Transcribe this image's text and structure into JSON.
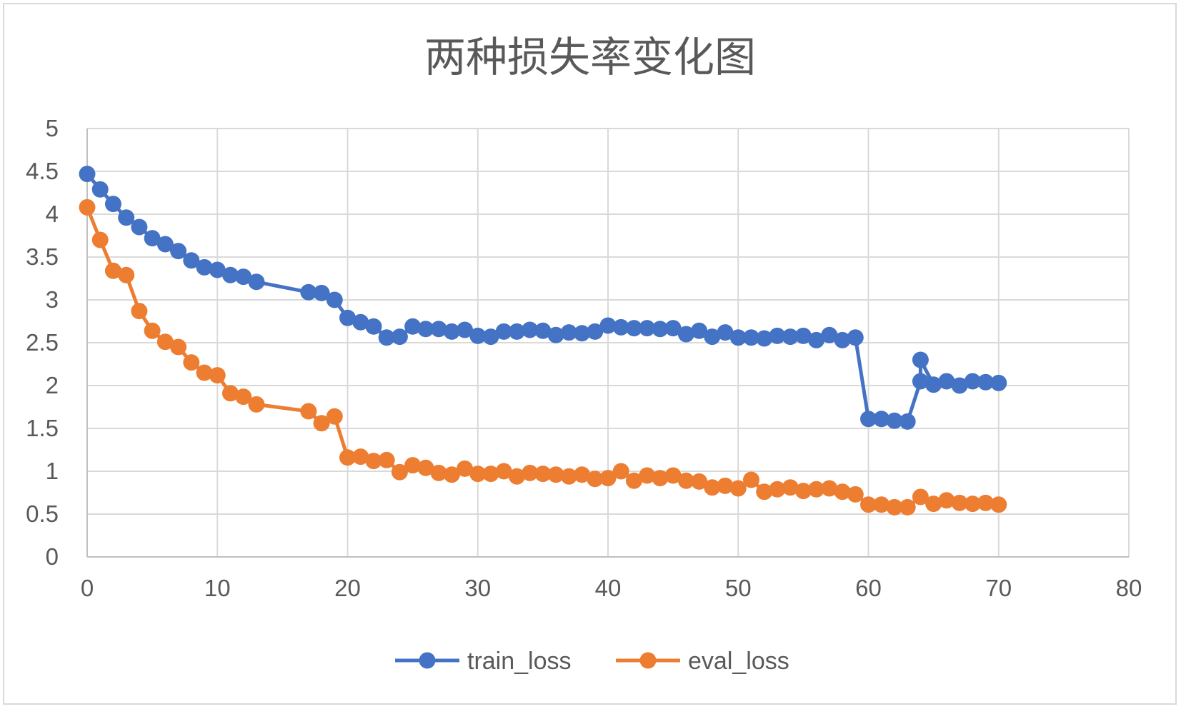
{
  "chart_data": {
    "type": "line",
    "title": "两种损失率变化图",
    "xlabel": "",
    "ylabel": "",
    "xlim": [
      0,
      80
    ],
    "ylim": [
      0,
      5
    ],
    "x_ticks": [
      "0",
      "10",
      "20",
      "30",
      "40",
      "50",
      "60",
      "70",
      "80"
    ],
    "y_ticks": [
      "0",
      "0.5",
      "1",
      "1.5",
      "2",
      "2.5",
      "3",
      "3.5",
      "4",
      "4.5",
      "5"
    ],
    "grid": true,
    "legend_position": "bottom",
    "series": [
      {
        "name": "train_loss",
        "color": "#4472c4",
        "points": [
          [
            0,
            4.47
          ],
          [
            1,
            4.29
          ],
          [
            2,
            4.12
          ],
          [
            3,
            3.96
          ],
          [
            4,
            3.85
          ],
          [
            5,
            3.72
          ],
          [
            6,
            3.65
          ],
          [
            7,
            3.57
          ],
          [
            8,
            3.46
          ],
          [
            9,
            3.38
          ],
          [
            10,
            3.35
          ],
          [
            11,
            3.29
          ],
          [
            12,
            3.27
          ],
          [
            13,
            3.21
          ],
          [
            17,
            3.09
          ],
          [
            18,
            3.08
          ],
          [
            19,
            3.0
          ],
          [
            20,
            2.79
          ],
          [
            21,
            2.74
          ],
          [
            22,
            2.69
          ],
          [
            23,
            2.56
          ],
          [
            24,
            2.57
          ],
          [
            25,
            2.69
          ],
          [
            26,
            2.66
          ],
          [
            27,
            2.66
          ],
          [
            28,
            2.63
          ],
          [
            29,
            2.65
          ],
          [
            30,
            2.58
          ],
          [
            31,
            2.57
          ],
          [
            32,
            2.63
          ],
          [
            33,
            2.63
          ],
          [
            34,
            2.65
          ],
          [
            35,
            2.64
          ],
          [
            36,
            2.59
          ],
          [
            37,
            2.62
          ],
          [
            38,
            2.61
          ],
          [
            39,
            2.63
          ],
          [
            40,
            2.7
          ],
          [
            41,
            2.68
          ],
          [
            42,
            2.67
          ],
          [
            43,
            2.67
          ],
          [
            44,
            2.66
          ],
          [
            45,
            2.67
          ],
          [
            46,
            2.6
          ],
          [
            47,
            2.64
          ],
          [
            48,
            2.57
          ],
          [
            49,
            2.62
          ],
          [
            50,
            2.56
          ],
          [
            51,
            2.56
          ],
          [
            52,
            2.55
          ],
          [
            53,
            2.58
          ],
          [
            54,
            2.57
          ],
          [
            55,
            2.58
          ],
          [
            56,
            2.53
          ],
          [
            57,
            2.59
          ],
          [
            58,
            2.53
          ],
          [
            59,
            2.56
          ],
          [
            60,
            1.61
          ],
          [
            61,
            1.61
          ],
          [
            62,
            1.59
          ],
          [
            63,
            1.58
          ],
          [
            64,
            2.05
          ],
          [
            64,
            2.3
          ],
          [
            65,
            2.01
          ],
          [
            66,
            2.05
          ],
          [
            67,
            2.0
          ],
          [
            68,
            2.05
          ],
          [
            69,
            2.04
          ],
          [
            70,
            2.03
          ]
        ]
      },
      {
        "name": "eval_loss",
        "color": "#ed7d31",
        "points": [
          [
            0,
            4.08
          ],
          [
            1,
            3.7
          ],
          [
            2,
            3.34
          ],
          [
            3,
            3.29
          ],
          [
            4,
            2.87
          ],
          [
            5,
            2.64
          ],
          [
            6,
            2.51
          ],
          [
            7,
            2.45
          ],
          [
            8,
            2.27
          ],
          [
            9,
            2.15
          ],
          [
            10,
            2.12
          ],
          [
            11,
            1.91
          ],
          [
            12,
            1.87
          ],
          [
            13,
            1.78
          ],
          [
            17,
            1.7
          ],
          [
            18,
            1.56
          ],
          [
            19,
            1.64
          ],
          [
            20,
            1.16
          ],
          [
            21,
            1.17
          ],
          [
            22,
            1.12
          ],
          [
            23,
            1.13
          ],
          [
            24,
            0.99
          ],
          [
            25,
            1.07
          ],
          [
            26,
            1.04
          ],
          [
            27,
            0.98
          ],
          [
            28,
            0.96
          ],
          [
            29,
            1.03
          ],
          [
            30,
            0.97
          ],
          [
            31,
            0.97
          ],
          [
            32,
            1.0
          ],
          [
            33,
            0.94
          ],
          [
            34,
            0.98
          ],
          [
            35,
            0.97
          ],
          [
            36,
            0.96
          ],
          [
            37,
            0.94
          ],
          [
            38,
            0.96
          ],
          [
            39,
            0.91
          ],
          [
            40,
            0.92
          ],
          [
            41,
            1.0
          ],
          [
            42,
            0.89
          ],
          [
            43,
            0.95
          ],
          [
            44,
            0.92
          ],
          [
            45,
            0.95
          ],
          [
            46,
            0.89
          ],
          [
            47,
            0.88
          ],
          [
            48,
            0.81
          ],
          [
            49,
            0.83
          ],
          [
            50,
            0.8
          ],
          [
            51,
            0.9
          ],
          [
            52,
            0.76
          ],
          [
            53,
            0.79
          ],
          [
            54,
            0.81
          ],
          [
            55,
            0.77
          ],
          [
            56,
            0.79
          ],
          [
            57,
            0.8
          ],
          [
            58,
            0.76
          ],
          [
            59,
            0.73
          ],
          [
            60,
            0.61
          ],
          [
            61,
            0.61
          ],
          [
            62,
            0.58
          ],
          [
            63,
            0.58
          ],
          [
            64,
            0.7
          ],
          [
            65,
            0.62
          ],
          [
            66,
            0.66
          ],
          [
            67,
            0.63
          ],
          [
            68,
            0.62
          ],
          [
            69,
            0.63
          ],
          [
            70,
            0.61
          ]
        ]
      }
    ]
  }
}
